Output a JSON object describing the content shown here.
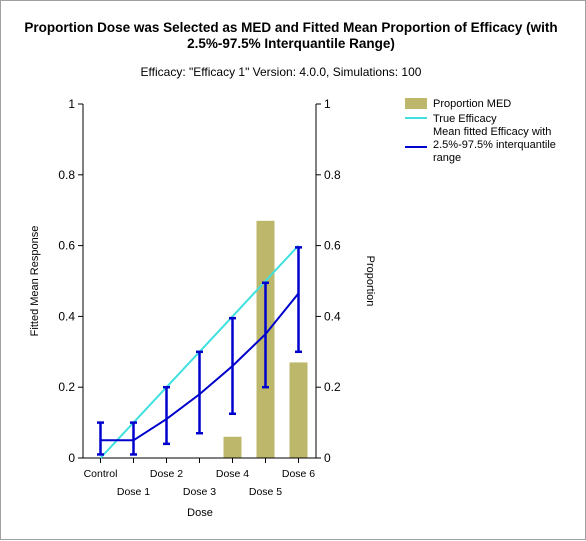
{
  "chart_data": {
    "type": "bar+line",
    "title_lines": [
      "Proportion Dose was Selected as MED and Fitted Mean Proportion of Efficacy (with",
      "2.5%-97.5% Interquantile Range)"
    ],
    "subtitle": "Efficacy: \"Efficacy 1\" Version: 4.0.0, Simulations: 100",
    "categories": [
      "Control",
      "Dose 1",
      "Dose 2",
      "Dose 3",
      "Dose 4",
      "Dose 5",
      "Dose 6"
    ],
    "xlabel": "Dose",
    "ylabel_left": "Fitted Mean Response",
    "ylabel_right": "Proportion",
    "ylim": [
      0,
      1
    ],
    "yticks": [
      "0",
      "0.2",
      "0.4",
      "0.6",
      "0.8",
      "1"
    ],
    "yticks_values": [
      0,
      0.2,
      0.4,
      0.6,
      0.8,
      1
    ],
    "series": [
      {
        "name": "Proportion MED",
        "kind": "bar",
        "axis": "right",
        "color": "#bdb76b",
        "values": [
          0,
          0,
          0,
          0,
          0.06,
          0.67,
          0.27
        ]
      },
      {
        "name": "True Efficacy",
        "kind": "line",
        "axis": "left",
        "color": "#40e0e0",
        "values": [
          0.0,
          0.1,
          0.2,
          0.3,
          0.4,
          0.5,
          0.6
        ]
      },
      {
        "name": "Mean fitted Efficacy with 2.5%-97.5% interquantile range",
        "kind": "line_errorbar",
        "axis": "left",
        "color": "#0000cd",
        "values": [
          0.05,
          0.05,
          0.11,
          0.18,
          0.26,
          0.35,
          0.465
        ],
        "lower": [
          0.01,
          0.01,
          0.04,
          0.07,
          0.125,
          0.2,
          0.3
        ],
        "upper": [
          0.1,
          0.1,
          0.2,
          0.3,
          0.395,
          0.495,
          0.595
        ]
      }
    ],
    "legend": {
      "placement": "top-right",
      "entries": [
        "Proportion MED",
        "True Efficacy",
        "Mean fitted Efficacy with",
        "2.5%-97.5% interquantile",
        "range"
      ]
    }
  }
}
